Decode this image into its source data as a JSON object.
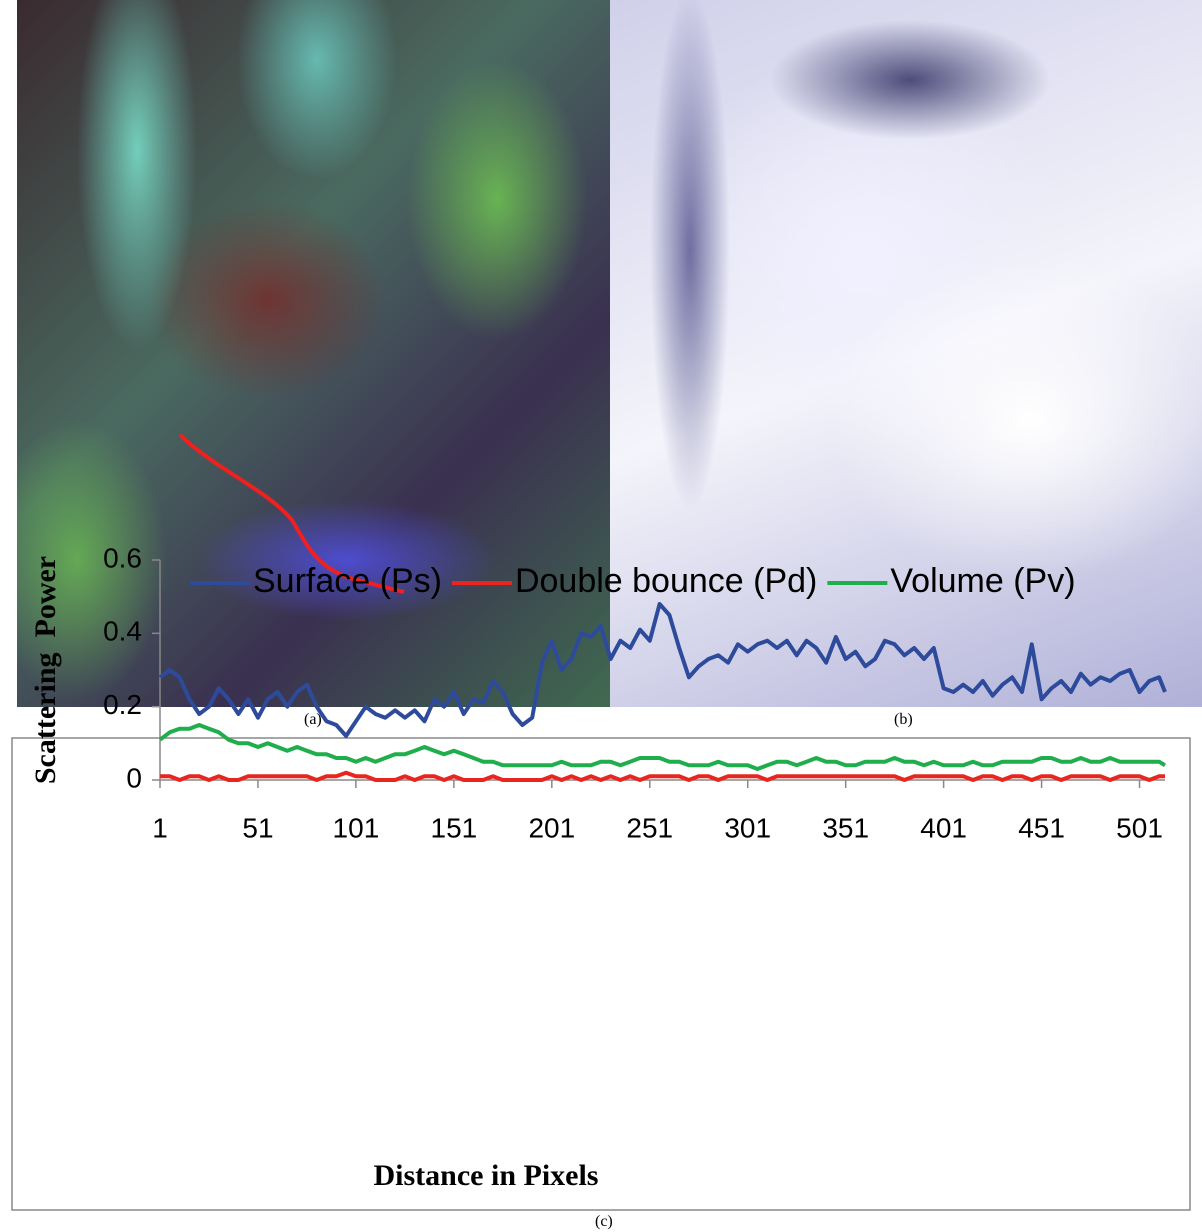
{
  "panels": {
    "a": "(a)",
    "b": "(b)",
    "c": "(c)"
  },
  "chart_data": {
    "type": "line",
    "xlabel": "Distance in Pixels",
    "ylabel": "Scattering  Power",
    "x": [
      1,
      6,
      11,
      16,
      21,
      26,
      31,
      36,
      41,
      46,
      51,
      56,
      61,
      66,
      71,
      76,
      81,
      86,
      91,
      96,
      101,
      106,
      111,
      116,
      121,
      126,
      131,
      136,
      141,
      146,
      151,
      156,
      161,
      166,
      171,
      176,
      181,
      186,
      191,
      196,
      201,
      206,
      211,
      216,
      221,
      226,
      231,
      236,
      241,
      246,
      251,
      256,
      261,
      266,
      271,
      276,
      281,
      286,
      291,
      296,
      301,
      306,
      311,
      316,
      321,
      326,
      331,
      336,
      341,
      346,
      351,
      356,
      361,
      366,
      371,
      376,
      381,
      386,
      391,
      396,
      401,
      406,
      411,
      416,
      421,
      426,
      431,
      436,
      441,
      446,
      451,
      456,
      461,
      466,
      471,
      476,
      481,
      486,
      491,
      496,
      501,
      506,
      511,
      514
    ],
    "series": [
      {
        "name": "Surface (Ps)",
        "color": "#2e4b9b",
        "values": [
          0.28,
          0.3,
          0.28,
          0.22,
          0.18,
          0.2,
          0.25,
          0.22,
          0.18,
          0.22,
          0.17,
          0.22,
          0.24,
          0.2,
          0.24,
          0.26,
          0.2,
          0.16,
          0.15,
          0.12,
          0.16,
          0.2,
          0.18,
          0.17,
          0.19,
          0.17,
          0.19,
          0.16,
          0.22,
          0.2,
          0.24,
          0.18,
          0.22,
          0.21,
          0.27,
          0.24,
          0.18,
          0.15,
          0.17,
          0.32,
          0.38,
          0.3,
          0.33,
          0.4,
          0.39,
          0.42,
          0.33,
          0.38,
          0.36,
          0.41,
          0.38,
          0.48,
          0.45,
          0.36,
          0.28,
          0.31,
          0.33,
          0.34,
          0.32,
          0.37,
          0.35,
          0.37,
          0.38,
          0.36,
          0.38,
          0.34,
          0.38,
          0.36,
          0.32,
          0.39,
          0.33,
          0.35,
          0.31,
          0.33,
          0.38,
          0.37,
          0.34,
          0.36,
          0.33,
          0.36,
          0.25,
          0.24,
          0.26,
          0.24,
          0.27,
          0.23,
          0.26,
          0.28,
          0.24,
          0.37,
          0.22,
          0.25,
          0.27,
          0.24,
          0.29,
          0.26,
          0.28,
          0.27,
          0.29,
          0.3,
          0.24,
          0.27,
          0.28,
          0.24
        ]
      },
      {
        "name": "Double bounce (Pd)",
        "color": "#e8261f",
        "values": [
          0.01,
          0.01,
          0.0,
          0.01,
          0.01,
          0.0,
          0.01,
          0.0,
          0.0,
          0.01,
          0.01,
          0.01,
          0.01,
          0.01,
          0.01,
          0.01,
          0.0,
          0.01,
          0.01,
          0.02,
          0.01,
          0.01,
          0.0,
          0.0,
          0.0,
          0.01,
          0.0,
          0.01,
          0.01,
          0.0,
          0.01,
          0.0,
          0.0,
          0.0,
          0.01,
          0.0,
          0.0,
          0.0,
          0.0,
          0.0,
          0.01,
          0.0,
          0.01,
          0.0,
          0.01,
          0.0,
          0.01,
          0.0,
          0.01,
          0.0,
          0.01,
          0.01,
          0.01,
          0.01,
          0.0,
          0.01,
          0.01,
          0.0,
          0.01,
          0.01,
          0.01,
          0.01,
          0.0,
          0.01,
          0.01,
          0.01,
          0.01,
          0.01,
          0.01,
          0.01,
          0.01,
          0.01,
          0.01,
          0.01,
          0.01,
          0.01,
          0.0,
          0.01,
          0.01,
          0.01,
          0.01,
          0.01,
          0.01,
          0.0,
          0.01,
          0.01,
          0.0,
          0.01,
          0.01,
          0.0,
          0.01,
          0.01,
          0.0,
          0.01,
          0.01,
          0.01,
          0.01,
          0.0,
          0.01,
          0.01,
          0.01,
          0.0,
          0.01,
          0.01
        ]
      },
      {
        "name": "Volume (Pv)",
        "color": "#1fae4b",
        "values": [
          0.11,
          0.13,
          0.14,
          0.14,
          0.15,
          0.14,
          0.13,
          0.11,
          0.1,
          0.1,
          0.09,
          0.1,
          0.09,
          0.08,
          0.09,
          0.08,
          0.07,
          0.07,
          0.06,
          0.06,
          0.05,
          0.06,
          0.05,
          0.06,
          0.07,
          0.07,
          0.08,
          0.09,
          0.08,
          0.07,
          0.08,
          0.07,
          0.06,
          0.05,
          0.05,
          0.04,
          0.04,
          0.04,
          0.04,
          0.04,
          0.04,
          0.05,
          0.04,
          0.04,
          0.04,
          0.05,
          0.05,
          0.04,
          0.05,
          0.06,
          0.06,
          0.06,
          0.05,
          0.05,
          0.04,
          0.04,
          0.04,
          0.05,
          0.04,
          0.04,
          0.04,
          0.03,
          0.04,
          0.05,
          0.05,
          0.04,
          0.05,
          0.06,
          0.05,
          0.05,
          0.04,
          0.04,
          0.05,
          0.05,
          0.05,
          0.06,
          0.05,
          0.05,
          0.04,
          0.05,
          0.04,
          0.04,
          0.04,
          0.05,
          0.04,
          0.04,
          0.05,
          0.05,
          0.05,
          0.05,
          0.06,
          0.06,
          0.05,
          0.05,
          0.06,
          0.05,
          0.05,
          0.06,
          0.05,
          0.05,
          0.05,
          0.05,
          0.05,
          0.04
        ]
      }
    ],
    "xlim": [
      1,
      514
    ],
    "ylim": [
      0,
      0.6
    ],
    "xticks": [
      1,
      51,
      101,
      151,
      201,
      251,
      301,
      351,
      401,
      451,
      501
    ],
    "yticks": [
      0,
      0.2,
      0.4,
      0.6
    ],
    "legend": "top",
    "grid": false
  }
}
